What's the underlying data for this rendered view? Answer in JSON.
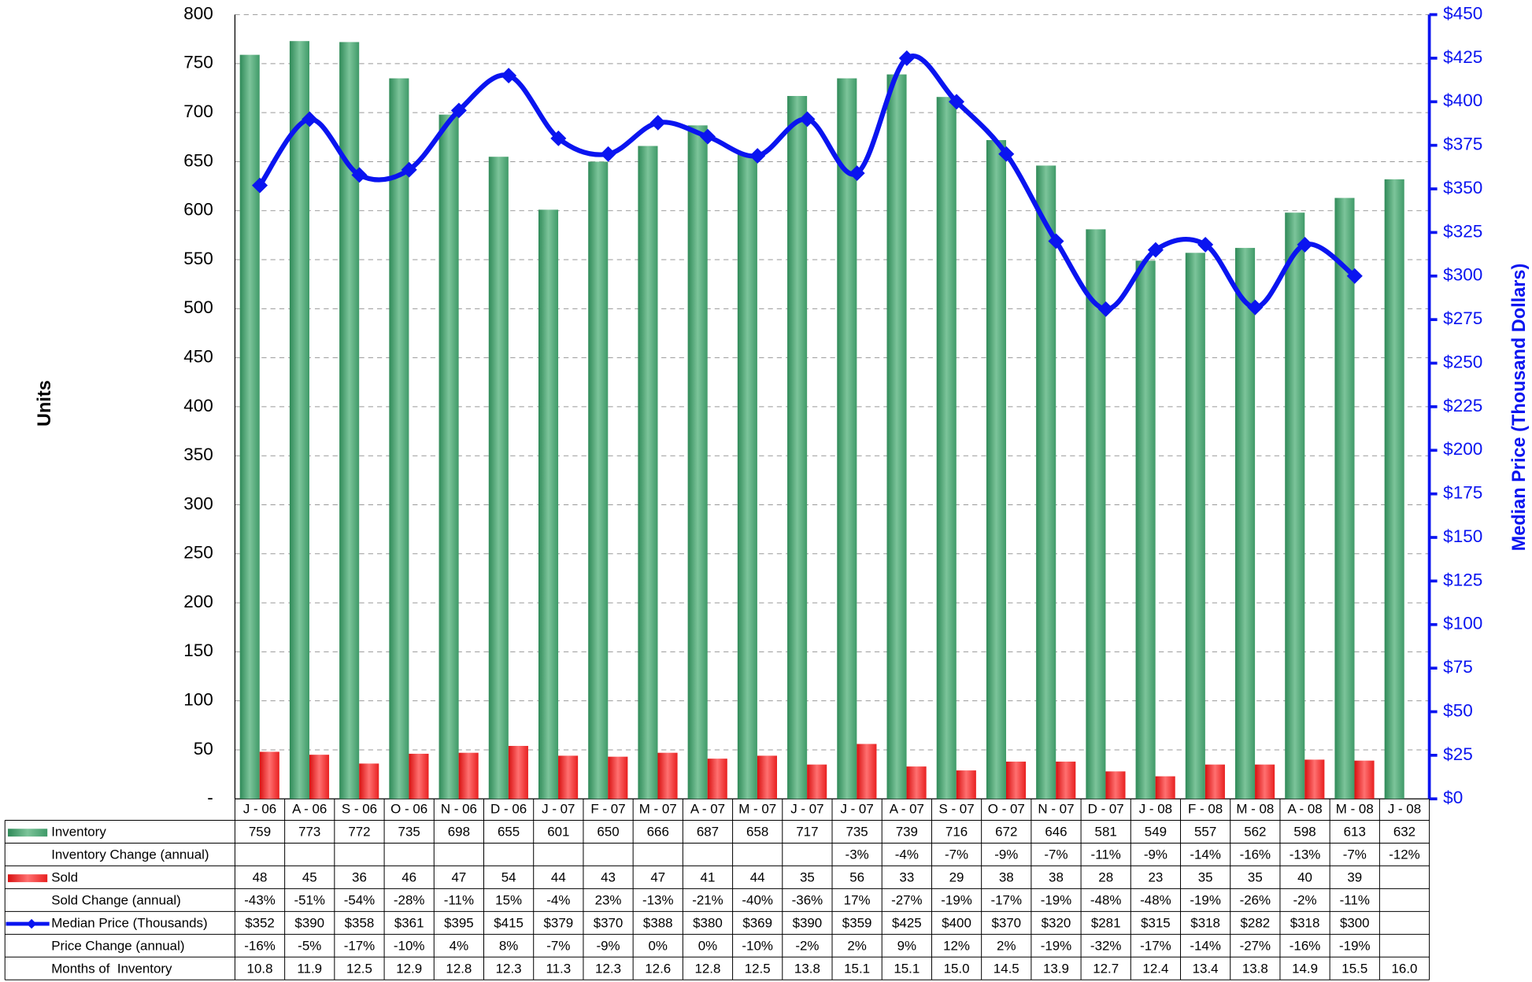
{
  "chart_data": {
    "type": "bar-line",
    "y_label": "Units",
    "y2_label": "Median Price (Thousand Dollars)",
    "categories": [
      "J - 06",
      "A - 06",
      "S - 06",
      "O - 06",
      "N - 06",
      "D - 06",
      "J - 07",
      "F - 07",
      "M - 07",
      "A - 07",
      "M - 07",
      "J - 07",
      "J - 07",
      "A - 07",
      "S - 07",
      "O - 07",
      "N - 07",
      "D - 07",
      "J - 08",
      "F - 08",
      "M - 08",
      "A - 08",
      "M - 08",
      "J - 08"
    ],
    "series": [
      {
        "name": "Inventory",
        "type": "bar",
        "color": "#3f9a68",
        "values": [
          759,
          773,
          772,
          735,
          698,
          655,
          601,
          650,
          666,
          687,
          658,
          717,
          735,
          739,
          716,
          672,
          646,
          581,
          549,
          557,
          562,
          598,
          613,
          632
        ]
      },
      {
        "name": "Sold",
        "type": "bar",
        "color": "#ee2020",
        "values": [
          48,
          45,
          36,
          46,
          47,
          54,
          44,
          43,
          47,
          41,
          44,
          35,
          56,
          33,
          29,
          38,
          38,
          28,
          23,
          35,
          35,
          40,
          39,
          null
        ]
      },
      {
        "name": "Median Price (Thousands)",
        "type": "line",
        "axis": "y2",
        "color": "#0a14f0",
        "values": [
          352,
          390,
          358,
          361,
          395,
          415,
          379,
          370,
          388,
          380,
          369,
          390,
          359,
          425,
          400,
          370,
          320,
          281,
          315,
          318,
          282,
          318,
          300,
          null
        ],
        "value_labels": [
          "$352",
          "$390",
          "$358",
          "$361",
          "$395",
          "$415",
          "$379",
          "$370",
          "$388",
          "$380",
          "$369",
          "$390",
          "$359",
          "$425",
          "$400",
          "$370",
          "$320",
          "$281",
          "$315",
          "$318",
          "$282",
          "$318",
          "$300",
          null
        ]
      }
    ],
    "table_rows": [
      {
        "label": "Inventory Change (annual)",
        "cells": [
          null,
          null,
          null,
          null,
          null,
          null,
          null,
          null,
          null,
          null,
          null,
          null,
          "-3%",
          "-4%",
          "-7%",
          "-9%",
          "-7%",
          "-11%",
          "-9%",
          "-14%",
          "-16%",
          "-13%",
          "-7%",
          "-12%"
        ]
      },
      {
        "label": "Sold Change (annual)",
        "cells": [
          "-43%",
          "-51%",
          "-54%",
          "-28%",
          "-11%",
          "15%",
          "-4%",
          "23%",
          "-13%",
          "-21%",
          "-40%",
          "-36%",
          "17%",
          "-27%",
          "-19%",
          "-17%",
          "-19%",
          "-48%",
          "-48%",
          "-19%",
          "-26%",
          "-2%",
          "-11%",
          null
        ]
      },
      {
        "label": "Price Change (annual)",
        "cells": [
          "-16%",
          "-5%",
          "-17%",
          "-10%",
          "4%",
          "8%",
          "-7%",
          "-9%",
          "0%",
          "0%",
          "-10%",
          "-2%",
          "2%",
          "9%",
          "12%",
          "2%",
          "-19%",
          "-32%",
          "-17%",
          "-14%",
          "-27%",
          "-16%",
          "-19%",
          null
        ]
      },
      {
        "label": "Months of  Inventory",
        "cells": [
          "10.8",
          "11.9",
          "12.5",
          "12.9",
          "12.8",
          "12.3",
          "11.3",
          "12.3",
          "12.6",
          "12.8",
          "12.5",
          "13.8",
          "15.1",
          "15.1",
          "15.0",
          "14.5",
          "13.9",
          "12.7",
          "12.4",
          "13.4",
          "13.8",
          "14.9",
          "15.5",
          "16.0"
        ]
      }
    ],
    "ylim": [
      0,
      800
    ],
    "yticks": [
      {
        "value": 0,
        "label": "-"
      },
      50,
      100,
      150,
      200,
      250,
      300,
      350,
      400,
      450,
      500,
      550,
      600,
      650,
      700,
      750,
      800
    ],
    "y2lim": [
      0,
      450
    ],
    "y2ticks": [
      {
        "value": 0,
        "label": "$0"
      },
      {
        "value": 25,
        "label": "$25"
      },
      {
        "value": 50,
        "label": "$50"
      },
      {
        "value": 75,
        "label": "$75"
      },
      {
        "value": 100,
        "label": "$100"
      },
      {
        "value": 125,
        "label": "$125"
      },
      {
        "value": 150,
        "label": "$150"
      },
      {
        "value": 175,
        "label": "$175"
      },
      {
        "value": 200,
        "label": "$200"
      },
      {
        "value": 225,
        "label": "$225"
      },
      {
        "value": 250,
        "label": "$250"
      },
      {
        "value": 275,
        "label": "$275"
      },
      {
        "value": 300,
        "label": "$300"
      },
      {
        "value": 325,
        "label": "$325"
      },
      {
        "value": 350,
        "label": "$350"
      },
      {
        "value": 375,
        "label": "$375"
      },
      {
        "value": 400,
        "label": "$400"
      },
      {
        "value": 425,
        "label": "$425"
      },
      {
        "value": 450,
        "label": "$450"
      }
    ],
    "grid": true
  }
}
